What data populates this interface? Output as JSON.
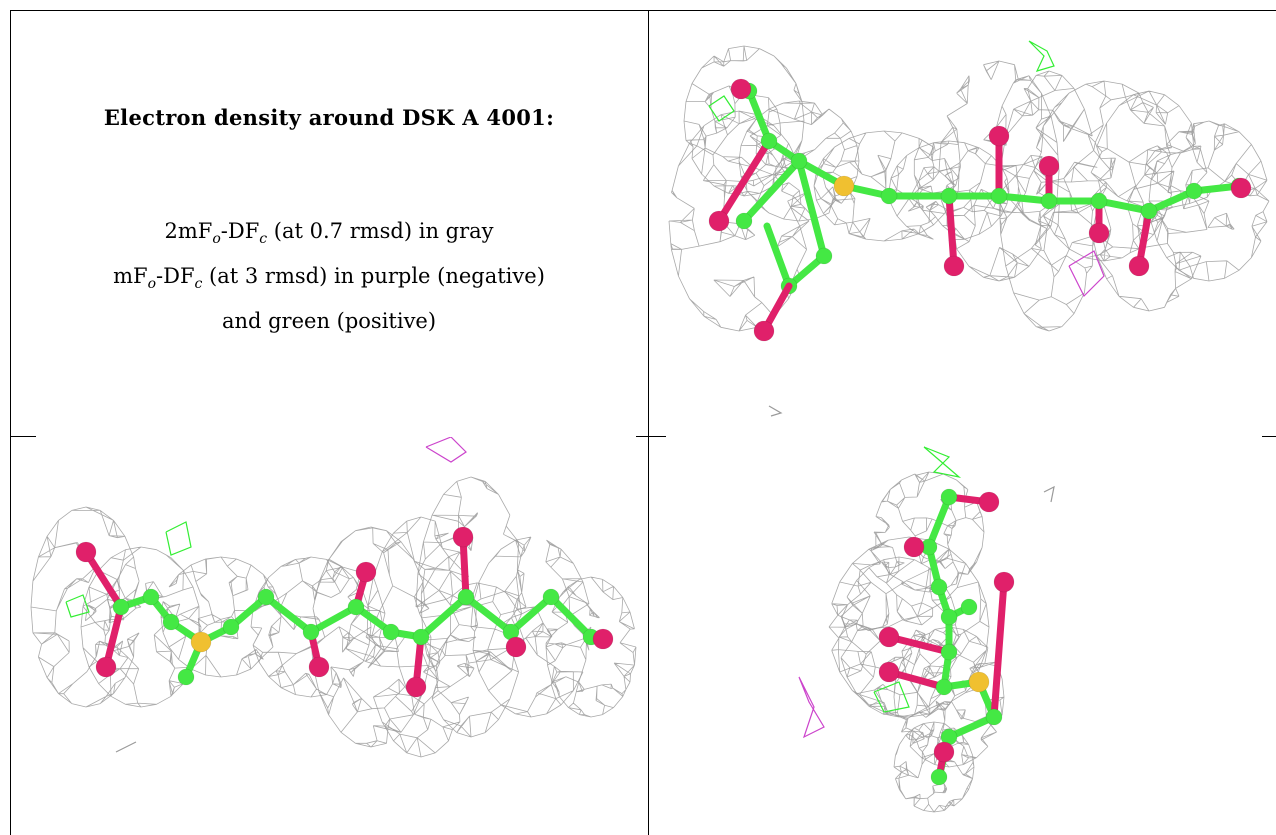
{
  "text_panel": {
    "title": "Electron density around DSK A 4001:",
    "line1": {
      "pre": "2mF",
      "sub1": "o",
      "mid": "-DF",
      "sub2": "c",
      "post": " (at 0.7 rmsd) in gray"
    },
    "line2": {
      "pre": "mF",
      "sub1": "o",
      "mid": "-DF",
      "sub2": "c",
      "post": " (at 3 rmsd) in purple (negative)"
    },
    "line3": "and green (positive)"
  },
  "colors": {
    "mesh_gray": "#9a9a9a",
    "positive_green": "#33ee33",
    "negative_purple": "#cc44cc",
    "carbon": "#44e844",
    "oxygen": "#e0206a",
    "sulfur": "#f0c030",
    "grid": "#000000"
  },
  "views": [
    {
      "name": "view-top-right",
      "orientation": "side"
    },
    {
      "name": "view-bottom-left",
      "orientation": "front"
    },
    {
      "name": "view-bottom-right",
      "orientation": "end-on"
    }
  ]
}
